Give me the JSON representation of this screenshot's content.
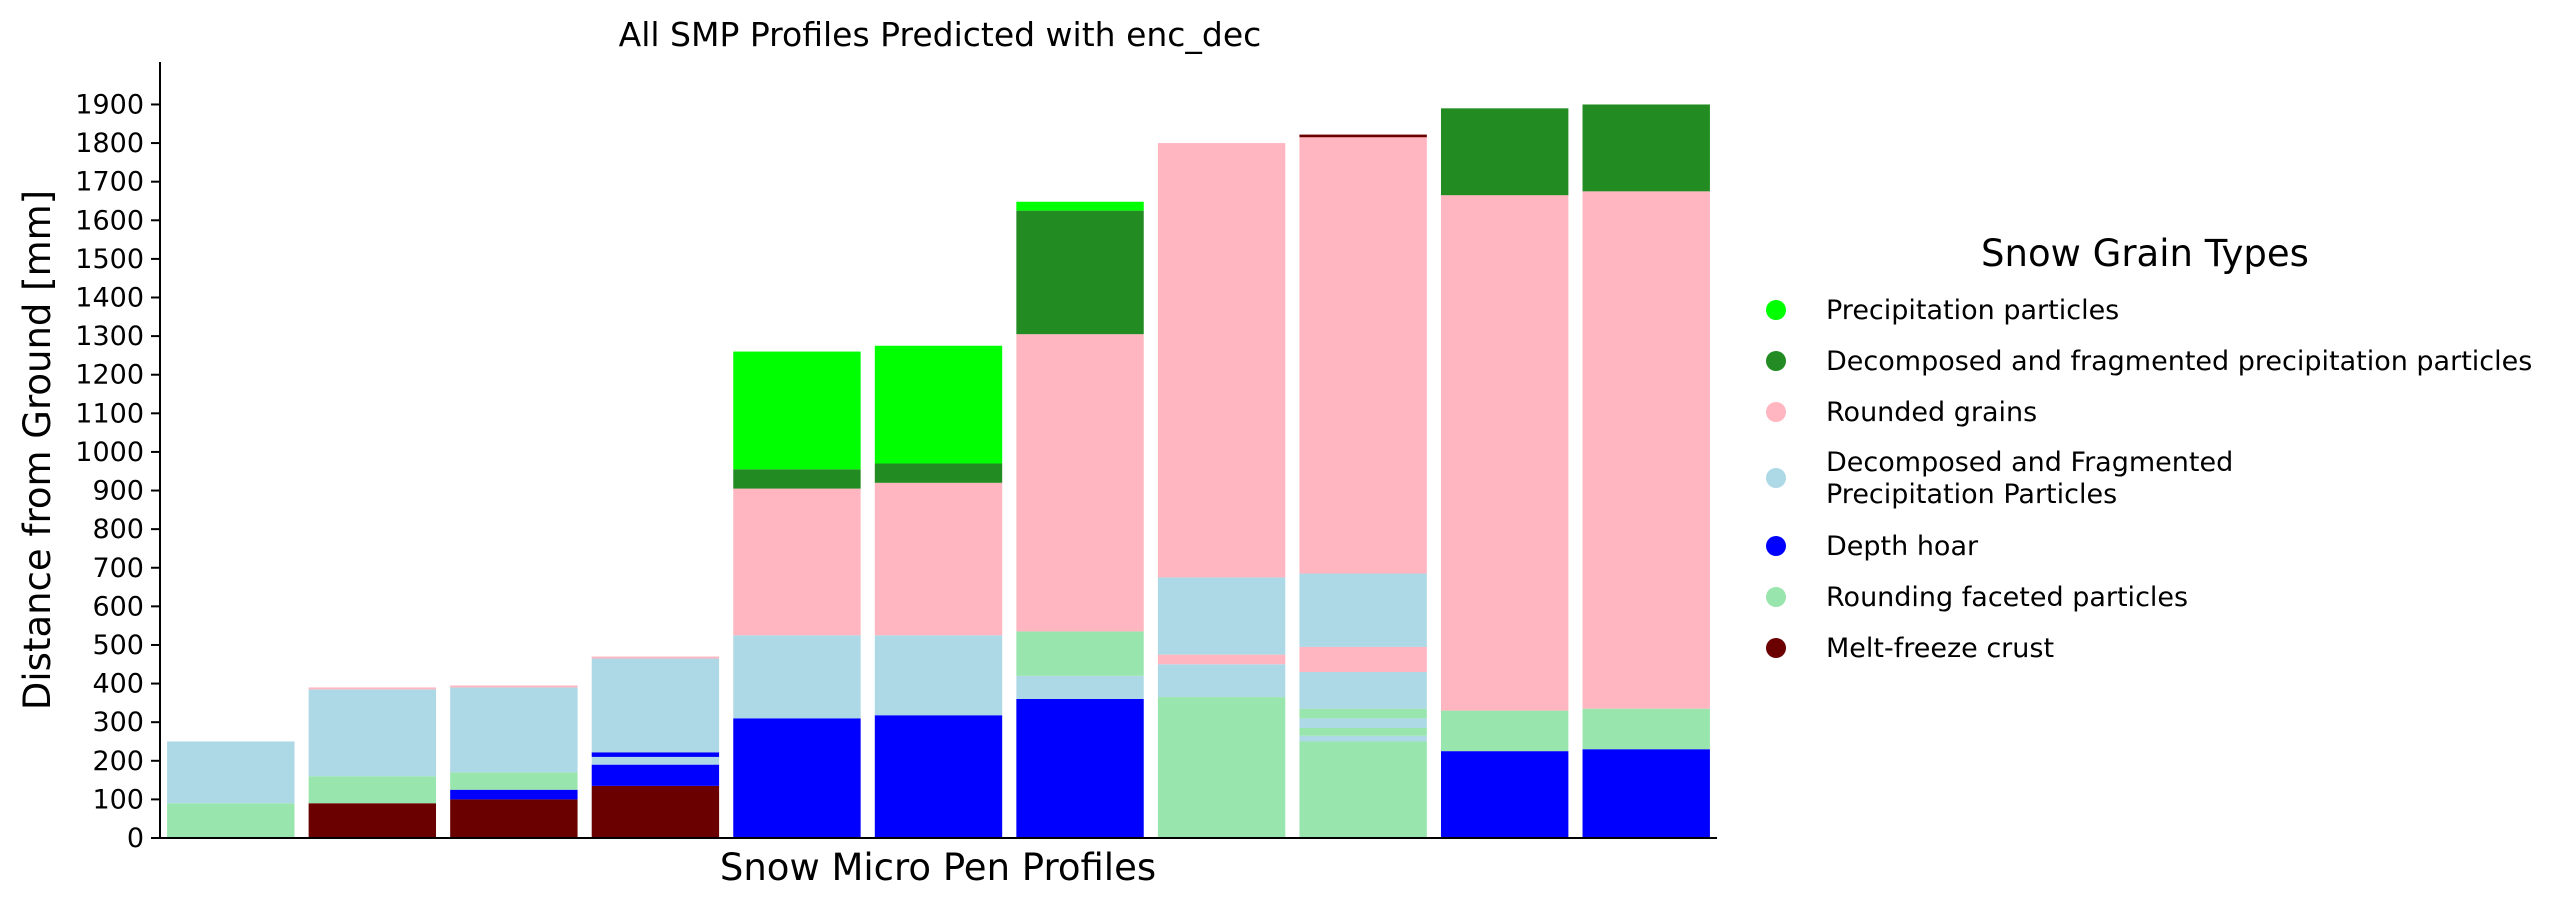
{
  "chart_data": {
    "type": "bar",
    "stacked": true,
    "title": "All SMP Profiles Predicted with enc_dec",
    "xlabel": "Snow Micro Pen Profiles",
    "ylabel": "Distance from Ground [mm]",
    "ylim": [
      0,
      2010
    ],
    "yticks": [
      0,
      100,
      200,
      300,
      400,
      500,
      600,
      700,
      800,
      900,
      1000,
      1100,
      1200,
      1300,
      1400,
      1500,
      1600,
      1700,
      1800,
      1900
    ],
    "grid": false,
    "legend": {
      "title": "Snow Grain Types",
      "placement": "right",
      "entries": [
        {
          "key": "pp",
          "lines": [
            "Precipitation particles"
          ],
          "color": "#00ff00"
        },
        {
          "key": "dfpp",
          "lines": [
            "Decomposed and fragmented precipitation particles"
          ],
          "color": "#228b22"
        },
        {
          "key": "rg",
          "lines": [
            "Rounded grains"
          ],
          "color": "#ffb6c1"
        },
        {
          "key": "df",
          "lines": [
            "Decomposed and Fragmented",
            "Precipitation Particles"
          ],
          "color": "#add8e6"
        },
        {
          "key": "dh",
          "lines": [
            "Depth hoar"
          ],
          "color": "#0000ff"
        },
        {
          "key": "rf",
          "lines": [
            "Rounding faceted particles"
          ],
          "color": "#98e5ad"
        },
        {
          "key": "mf",
          "lines": [
            "Melt-freeze crust"
          ],
          "color": "#6b0000"
        }
      ]
    },
    "profiles": [
      {
        "segments": [
          {
            "type": "rf",
            "from": 0,
            "to": 90
          },
          {
            "type": "df",
            "from": 90,
            "to": 250
          }
        ]
      },
      {
        "segments": [
          {
            "type": "mf",
            "from": 0,
            "to": 90
          },
          {
            "type": "rf",
            "from": 90,
            "to": 160
          },
          {
            "type": "df",
            "from": 160,
            "to": 385
          },
          {
            "type": "rg",
            "from": 385,
            "to": 390
          }
        ]
      },
      {
        "segments": [
          {
            "type": "mf",
            "from": 0,
            "to": 100
          },
          {
            "type": "dh",
            "from": 100,
            "to": 125
          },
          {
            "type": "rf",
            "from": 125,
            "to": 170
          },
          {
            "type": "df",
            "from": 170,
            "to": 390
          },
          {
            "type": "rg",
            "from": 390,
            "to": 395
          }
        ]
      },
      {
        "segments": [
          {
            "type": "mf",
            "from": 0,
            "to": 135
          },
          {
            "type": "dh",
            "from": 135,
            "to": 190
          },
          {
            "type": "df",
            "from": 190,
            "to": 210
          },
          {
            "type": "dh",
            "from": 210,
            "to": 222
          },
          {
            "type": "df",
            "from": 222,
            "to": 465
          },
          {
            "type": "rg",
            "from": 465,
            "to": 470
          }
        ]
      },
      {
        "segments": [
          {
            "type": "dh",
            "from": 0,
            "to": 310
          },
          {
            "type": "df",
            "from": 310,
            "to": 525
          },
          {
            "type": "rg",
            "from": 525,
            "to": 905
          },
          {
            "type": "dfpp",
            "from": 905,
            "to": 955
          },
          {
            "type": "pp",
            "from": 955,
            "to": 1260
          }
        ]
      },
      {
        "segments": [
          {
            "type": "dh",
            "from": 0,
            "to": 318
          },
          {
            "type": "df",
            "from": 318,
            "to": 525
          },
          {
            "type": "rg",
            "from": 525,
            "to": 920
          },
          {
            "type": "dfpp",
            "from": 920,
            "to": 970
          },
          {
            "type": "pp",
            "from": 970,
            "to": 1275
          }
        ]
      },
      {
        "segments": [
          {
            "type": "dh",
            "from": 0,
            "to": 360
          },
          {
            "type": "df",
            "from": 360,
            "to": 420
          },
          {
            "type": "rf",
            "from": 420,
            "to": 535
          },
          {
            "type": "rg",
            "from": 535,
            "to": 1305
          },
          {
            "type": "dfpp",
            "from": 1305,
            "to": 1625
          },
          {
            "type": "pp",
            "from": 1625,
            "to": 1648
          }
        ]
      },
      {
        "segments": [
          {
            "type": "rf",
            "from": 0,
            "to": 365
          },
          {
            "type": "df",
            "from": 365,
            "to": 450
          },
          {
            "type": "rg",
            "from": 450,
            "to": 475
          },
          {
            "type": "df",
            "from": 475,
            "to": 675
          },
          {
            "type": "rg",
            "from": 675,
            "to": 1800
          }
        ]
      },
      {
        "segments": [
          {
            "type": "rf",
            "from": 0,
            "to": 250
          },
          {
            "type": "df",
            "from": 250,
            "to": 265
          },
          {
            "type": "rf",
            "from": 265,
            "to": 285
          },
          {
            "type": "df",
            "from": 285,
            "to": 310
          },
          {
            "type": "rf",
            "from": 310,
            "to": 335
          },
          {
            "type": "df",
            "from": 335,
            "to": 430
          },
          {
            "type": "rg",
            "from": 430,
            "to": 495
          },
          {
            "type": "df",
            "from": 495,
            "to": 685
          },
          {
            "type": "rg",
            "from": 685,
            "to": 1815
          },
          {
            "type": "mf",
            "from": 1815,
            "to": 1822
          }
        ]
      },
      {
        "segments": [
          {
            "type": "dh",
            "from": 0,
            "to": 225
          },
          {
            "type": "rf",
            "from": 225,
            "to": 330
          },
          {
            "type": "rg",
            "from": 330,
            "to": 1665
          },
          {
            "type": "dfpp",
            "from": 1665,
            "to": 1890
          }
        ]
      },
      {
        "segments": [
          {
            "type": "dh",
            "from": 0,
            "to": 230
          },
          {
            "type": "rf",
            "from": 230,
            "to": 335
          },
          {
            "type": "rg",
            "from": 335,
            "to": 1675
          },
          {
            "type": "dfpp",
            "from": 1675,
            "to": 1900
          }
        ]
      }
    ]
  }
}
